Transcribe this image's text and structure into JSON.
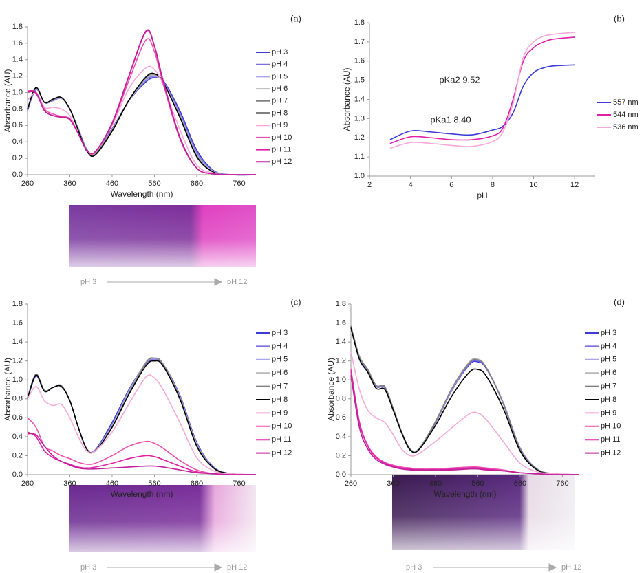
{
  "chart_data": [
    {
      "type": "line",
      "title": "(a)",
      "x_label": "Wavelength (nm)",
      "y_label": "Absorbance (AU)",
      "x": [
        260,
        280,
        300,
        320,
        340,
        360,
        380,
        400,
        420,
        460,
        500,
        540,
        560,
        580,
        620,
        660,
        700,
        740,
        800
      ],
      "xlim": [
        260,
        800
      ],
      "xticks": [
        260,
        360,
        460,
        560,
        660,
        760
      ],
      "ylim": [
        0,
        1.8
      ],
      "yticks": [
        {
          "value": 0,
          "label": "0.0"
        },
        0.2,
        0.4,
        0.6,
        0.8,
        {
          "value": 1,
          "label": "1.0"
        },
        1.2,
        1.4,
        1.6,
        1.8
      ],
      "series": [
        {
          "name": "pH 3",
          "color": "#3b3bd6",
          "values": [
            0.78,
            1.04,
            0.88,
            0.9,
            0.93,
            0.8,
            0.56,
            0.31,
            0.26,
            0.56,
            0.9,
            1.13,
            1.18,
            1.15,
            0.78,
            0.3,
            0.05,
            0,
            0
          ]
        },
        {
          "name": "pH 4",
          "color": "#7b6fe0",
          "values": [
            0.79,
            1.05,
            0.88,
            0.9,
            0.93,
            0.8,
            0.55,
            0.3,
            0.25,
            0.55,
            0.9,
            1.15,
            1.19,
            1.14,
            0.75,
            0.27,
            0.04,
            0,
            0
          ]
        },
        {
          "name": "pH 5",
          "color": "#a9a6ee",
          "values": [
            0.8,
            1.05,
            0.88,
            0.91,
            0.93,
            0.8,
            0.55,
            0.3,
            0.25,
            0.55,
            0.9,
            1.16,
            1.2,
            1.13,
            0.73,
            0.25,
            0.04,
            0,
            0
          ]
        },
        {
          "name": "pH 6",
          "color": "#b8b8b8",
          "values": [
            0.8,
            1.05,
            0.88,
            0.91,
            0.94,
            0.8,
            0.55,
            0.3,
            0.25,
            0.54,
            0.9,
            1.17,
            1.21,
            1.13,
            0.72,
            0.24,
            0.03,
            0,
            0
          ]
        },
        {
          "name": "pH 7",
          "color": "#808080",
          "values": [
            0.8,
            1.06,
            0.88,
            0.91,
            0.94,
            0.8,
            0.55,
            0.29,
            0.25,
            0.54,
            0.91,
            1.18,
            1.22,
            1.13,
            0.71,
            0.23,
            0.03,
            0,
            0
          ]
        },
        {
          "name": "pH 8",
          "color": "#000000",
          "values": [
            0.8,
            1.06,
            0.88,
            0.92,
            0.94,
            0.8,
            0.54,
            0.29,
            0.24,
            0.53,
            0.91,
            1.19,
            1.23,
            1.13,
            0.7,
            0.22,
            0.03,
            0,
            0
          ]
        },
        {
          "name": "pH 9",
          "color": "#f7a8d8",
          "values": [
            0.9,
            1.0,
            0.82,
            0.82,
            0.8,
            0.72,
            0.5,
            0.3,
            0.27,
            0.6,
            1.05,
            1.3,
            1.28,
            1.1,
            0.55,
            0.12,
            0.02,
            0,
            0
          ]
        },
        {
          "name": "pH 10",
          "color": "#ee4fae",
          "values": [
            1.0,
            1.0,
            0.8,
            0.74,
            0.71,
            0.68,
            0.5,
            0.3,
            0.28,
            0.62,
            1.15,
            1.64,
            1.5,
            1.12,
            0.44,
            0.08,
            0.01,
            0,
            0
          ]
        },
        {
          "name": "pH 11",
          "color": "#e020a8",
          "values": [
            1.02,
            1.0,
            0.78,
            0.72,
            0.7,
            0.68,
            0.5,
            0.3,
            0.28,
            0.62,
            1.2,
            1.74,
            1.56,
            1.15,
            0.45,
            0.08,
            0.01,
            0,
            0
          ]
        },
        {
          "name": "pH 12",
          "color": "#c0209a",
          "values": [
            1.01,
            0.99,
            0.78,
            0.72,
            0.7,
            0.67,
            0.5,
            0.3,
            0.28,
            0.63,
            1.21,
            1.75,
            1.57,
            1.16,
            0.46,
            0.08,
            0.01,
            0,
            0
          ]
        }
      ]
    },
    {
      "type": "line",
      "title": "(b)",
      "x_label": "pH",
      "y_label": "Absorbance (AU)",
      "x": [
        3,
        4,
        5,
        6,
        7,
        8,
        8.5,
        9,
        9.5,
        10,
        10.5,
        11,
        12
      ],
      "xlim": [
        2,
        13
      ],
      "xticks": [
        2,
        4,
        6,
        8,
        10,
        12
      ],
      "ylim": [
        1,
        1.8
      ],
      "yticks": [
        {
          "value": 1,
          "label": "1.0"
        },
        1.1,
        1.2,
        1.3,
        1.4,
        1.5,
        1.6,
        1.7,
        1.8
      ],
      "annotations": [
        "pKa1 8.40",
        "pKa2 9.52"
      ],
      "series": [
        {
          "name": "557 nm",
          "color": "#3b3bd6",
          "values": [
            1.19,
            1.235,
            1.23,
            1.22,
            1.215,
            1.24,
            1.26,
            1.33,
            1.47,
            1.54,
            1.565,
            1.575,
            1.58
          ]
        },
        {
          "name": "544 nm",
          "color": "#e020a8",
          "values": [
            1.17,
            1.205,
            1.2,
            1.19,
            1.19,
            1.21,
            1.25,
            1.4,
            1.6,
            1.67,
            1.7,
            1.715,
            1.725
          ]
        },
        {
          "name": "536 nm",
          "color": "#f7a8d8",
          "values": [
            1.145,
            1.175,
            1.17,
            1.16,
            1.155,
            1.18,
            1.23,
            1.38,
            1.62,
            1.7,
            1.73,
            1.74,
            1.75
          ]
        }
      ]
    },
    {
      "type": "line",
      "title": "(c)",
      "x_label": "Wavelength (nm)",
      "y_label": "Absorbance (AU)",
      "x": [
        260,
        280,
        300,
        320,
        340,
        360,
        380,
        400,
        420,
        460,
        500,
        540,
        560,
        580,
        620,
        660,
        700,
        740,
        800
      ],
      "xlim": [
        260,
        800
      ],
      "xticks": [
        260,
        360,
        460,
        560,
        660,
        760
      ],
      "ylim": [
        0,
        1.8
      ],
      "yticks": [
        {
          "value": 0,
          "label": "0.0"
        },
        0.2,
        0.4,
        0.6,
        0.8,
        {
          "value": 1,
          "label": "1.0"
        },
        1.2,
        1.4,
        1.6,
        1.8
      ],
      "series": [
        {
          "name": "pH 3",
          "color": "#3b3bd6",
          "values": [
            0.8,
            1.04,
            0.88,
            0.92,
            0.93,
            0.78,
            0.5,
            0.27,
            0.26,
            0.55,
            0.9,
            1.17,
            1.21,
            1.17,
            0.84,
            0.34,
            0.08,
            0.01,
            0
          ]
        },
        {
          "name": "pH 4",
          "color": "#7b6fe0",
          "values": [
            0.81,
            1.05,
            0.88,
            0.92,
            0.93,
            0.78,
            0.5,
            0.27,
            0.26,
            0.53,
            0.89,
            1.17,
            1.22,
            1.17,
            0.83,
            0.33,
            0.08,
            0.01,
            0
          ]
        },
        {
          "name": "pH 5",
          "color": "#a9a6ee",
          "values": [
            0.81,
            1.05,
            0.88,
            0.92,
            0.93,
            0.78,
            0.5,
            0.27,
            0.25,
            0.52,
            0.88,
            1.18,
            1.22,
            1.17,
            0.82,
            0.32,
            0.07,
            0.01,
            0
          ]
        },
        {
          "name": "pH 6",
          "color": "#b8b8b8",
          "values": [
            0.81,
            1.06,
            0.89,
            0.92,
            0.94,
            0.78,
            0.5,
            0.27,
            0.25,
            0.51,
            0.87,
            1.19,
            1.23,
            1.17,
            0.82,
            0.32,
            0.07,
            0.01,
            0
          ]
        },
        {
          "name": "pH 7",
          "color": "#808080",
          "values": [
            0.81,
            1.06,
            0.89,
            0.92,
            0.94,
            0.78,
            0.5,
            0.27,
            0.25,
            0.5,
            0.86,
            1.18,
            1.23,
            1.17,
            0.81,
            0.31,
            0.07,
            0.01,
            0
          ]
        },
        {
          "name": "pH 8",
          "color": "#000000",
          "values": [
            0.8,
            1.05,
            0.88,
            0.92,
            0.93,
            0.78,
            0.5,
            0.27,
            0.25,
            0.5,
            0.85,
            1.15,
            1.2,
            1.15,
            0.8,
            0.3,
            0.07,
            0.01,
            0
          ]
        },
        {
          "name": "pH 9",
          "color": "#f7a8d8",
          "values": [
            0.8,
            0.93,
            0.78,
            0.73,
            0.74,
            0.6,
            0.4,
            0.25,
            0.25,
            0.45,
            0.75,
            1.03,
            1.02,
            0.9,
            0.55,
            0.18,
            0.04,
            0.01,
            0
          ]
        },
        {
          "name": "pH 10",
          "color": "#ee4fae",
          "values": [
            0.6,
            0.5,
            0.3,
            0.25,
            0.2,
            0.17,
            0.13,
            0.11,
            0.12,
            0.2,
            0.3,
            0.35,
            0.33,
            0.28,
            0.15,
            0.05,
            0.01,
            0,
            0
          ]
        },
        {
          "name": "pH 11",
          "color": "#e020a8",
          "values": [
            0.45,
            0.4,
            0.25,
            0.18,
            0.14,
            0.11,
            0.08,
            0.07,
            0.08,
            0.12,
            0.17,
            0.2,
            0.19,
            0.16,
            0.09,
            0.03,
            0.01,
            0,
            0
          ]
        },
        {
          "name": "pH 12",
          "color": "#c0209a",
          "values": [
            0.43,
            0.42,
            0.3,
            0.2,
            0.14,
            0.1,
            0.07,
            0.06,
            0.06,
            0.07,
            0.08,
            0.09,
            0.09,
            0.08,
            0.05,
            0.02,
            0.01,
            0,
            0
          ]
        }
      ]
    },
    {
      "type": "line",
      "title": "(d)",
      "x_label": "Wavelength (nm)",
      "y_label": "Absorbance (AU)",
      "x": [
        260,
        280,
        300,
        320,
        340,
        360,
        380,
        400,
        420,
        460,
        500,
        540,
        560,
        580,
        620,
        660,
        700,
        740,
        800
      ],
      "xlim": [
        260,
        800
      ],
      "xticks": [
        260,
        360,
        460,
        560,
        660,
        760
      ],
      "ylim": [
        0,
        1.8
      ],
      "yticks": [
        {
          "value": 0,
          "label": "0.0"
        },
        0.2,
        0.4,
        0.6,
        0.8,
        {
          "value": 1,
          "label": "1.0"
        },
        1.2,
        1.4,
        1.6,
        1.8
      ],
      "series": [
        {
          "name": "pH 3",
          "color": "#3b3bd6",
          "values": [
            1.55,
            1.23,
            1.1,
            0.93,
            0.92,
            0.7,
            0.45,
            0.27,
            0.27,
            0.55,
            0.9,
            1.16,
            1.19,
            1.12,
            0.76,
            0.28,
            0.06,
            0.01,
            0
          ]
        },
        {
          "name": "pH 4",
          "color": "#7b6fe0",
          "values": [
            1.56,
            1.23,
            1.1,
            0.93,
            0.92,
            0.7,
            0.45,
            0.27,
            0.27,
            0.55,
            0.9,
            1.17,
            1.2,
            1.13,
            0.76,
            0.28,
            0.06,
            0.01,
            0
          ]
        },
        {
          "name": "pH 5",
          "color": "#a9a6ee",
          "values": [
            1.56,
            1.24,
            1.11,
            0.94,
            0.93,
            0.7,
            0.45,
            0.27,
            0.27,
            0.56,
            0.91,
            1.18,
            1.21,
            1.13,
            0.75,
            0.27,
            0.06,
            0.01,
            0
          ]
        },
        {
          "name": "pH 6",
          "color": "#b8b8b8",
          "values": [
            1.57,
            1.24,
            1.11,
            0.94,
            0.93,
            0.7,
            0.45,
            0.27,
            0.27,
            0.56,
            0.92,
            1.19,
            1.22,
            1.13,
            0.75,
            0.27,
            0.06,
            0.01,
            0
          ]
        },
        {
          "name": "pH 7",
          "color": "#808080",
          "values": [
            1.57,
            1.25,
            1.11,
            0.94,
            0.93,
            0.7,
            0.45,
            0.27,
            0.26,
            0.56,
            0.92,
            1.18,
            1.21,
            1.13,
            0.75,
            0.27,
            0.06,
            0.01,
            0
          ]
        },
        {
          "name": "pH 8",
          "color": "#000000",
          "values": [
            1.55,
            1.22,
            1.08,
            0.91,
            0.9,
            0.68,
            0.44,
            0.26,
            0.26,
            0.52,
            0.84,
            1.08,
            1.11,
            1.04,
            0.7,
            0.25,
            0.05,
            0.01,
            0
          ]
        },
        {
          "name": "pH 9",
          "color": "#f7a8d8",
          "values": [
            1.3,
            0.9,
            0.68,
            0.6,
            0.55,
            0.42,
            0.27,
            0.2,
            0.22,
            0.35,
            0.5,
            0.64,
            0.65,
            0.58,
            0.35,
            0.12,
            0.03,
            0.01,
            0
          ]
        },
        {
          "name": "pH 10",
          "color": "#ee4fae",
          "values": [
            1.12,
            0.56,
            0.31,
            0.19,
            0.13,
            0.1,
            0.08,
            0.07,
            0.06,
            0.06,
            0.07,
            0.08,
            0.08,
            0.07,
            0.05,
            0.02,
            0.01,
            0,
            0
          ]
        },
        {
          "name": "pH 11",
          "color": "#e020a8",
          "values": [
            1.1,
            0.55,
            0.3,
            0.18,
            0.12,
            0.09,
            0.07,
            0.06,
            0.05,
            0.05,
            0.06,
            0.07,
            0.07,
            0.06,
            0.04,
            0.02,
            0.01,
            0,
            0
          ]
        },
        {
          "name": "pH 12",
          "color": "#c0209a",
          "values": [
            1.05,
            0.5,
            0.27,
            0.16,
            0.11,
            0.08,
            0.06,
            0.05,
            0.05,
            0.05,
            0.05,
            0.06,
            0.06,
            0.05,
            0.04,
            0.02,
            0.01,
            0,
            0
          ]
        }
      ]
    }
  ],
  "photos": [
    {
      "start_label": "pH 3",
      "end_label": "pH 12"
    },
    {
      "start_label": "pH 3",
      "end_label": "pH 12"
    },
    {
      "start_label": "pH 3",
      "end_label": "pH 12"
    }
  ]
}
